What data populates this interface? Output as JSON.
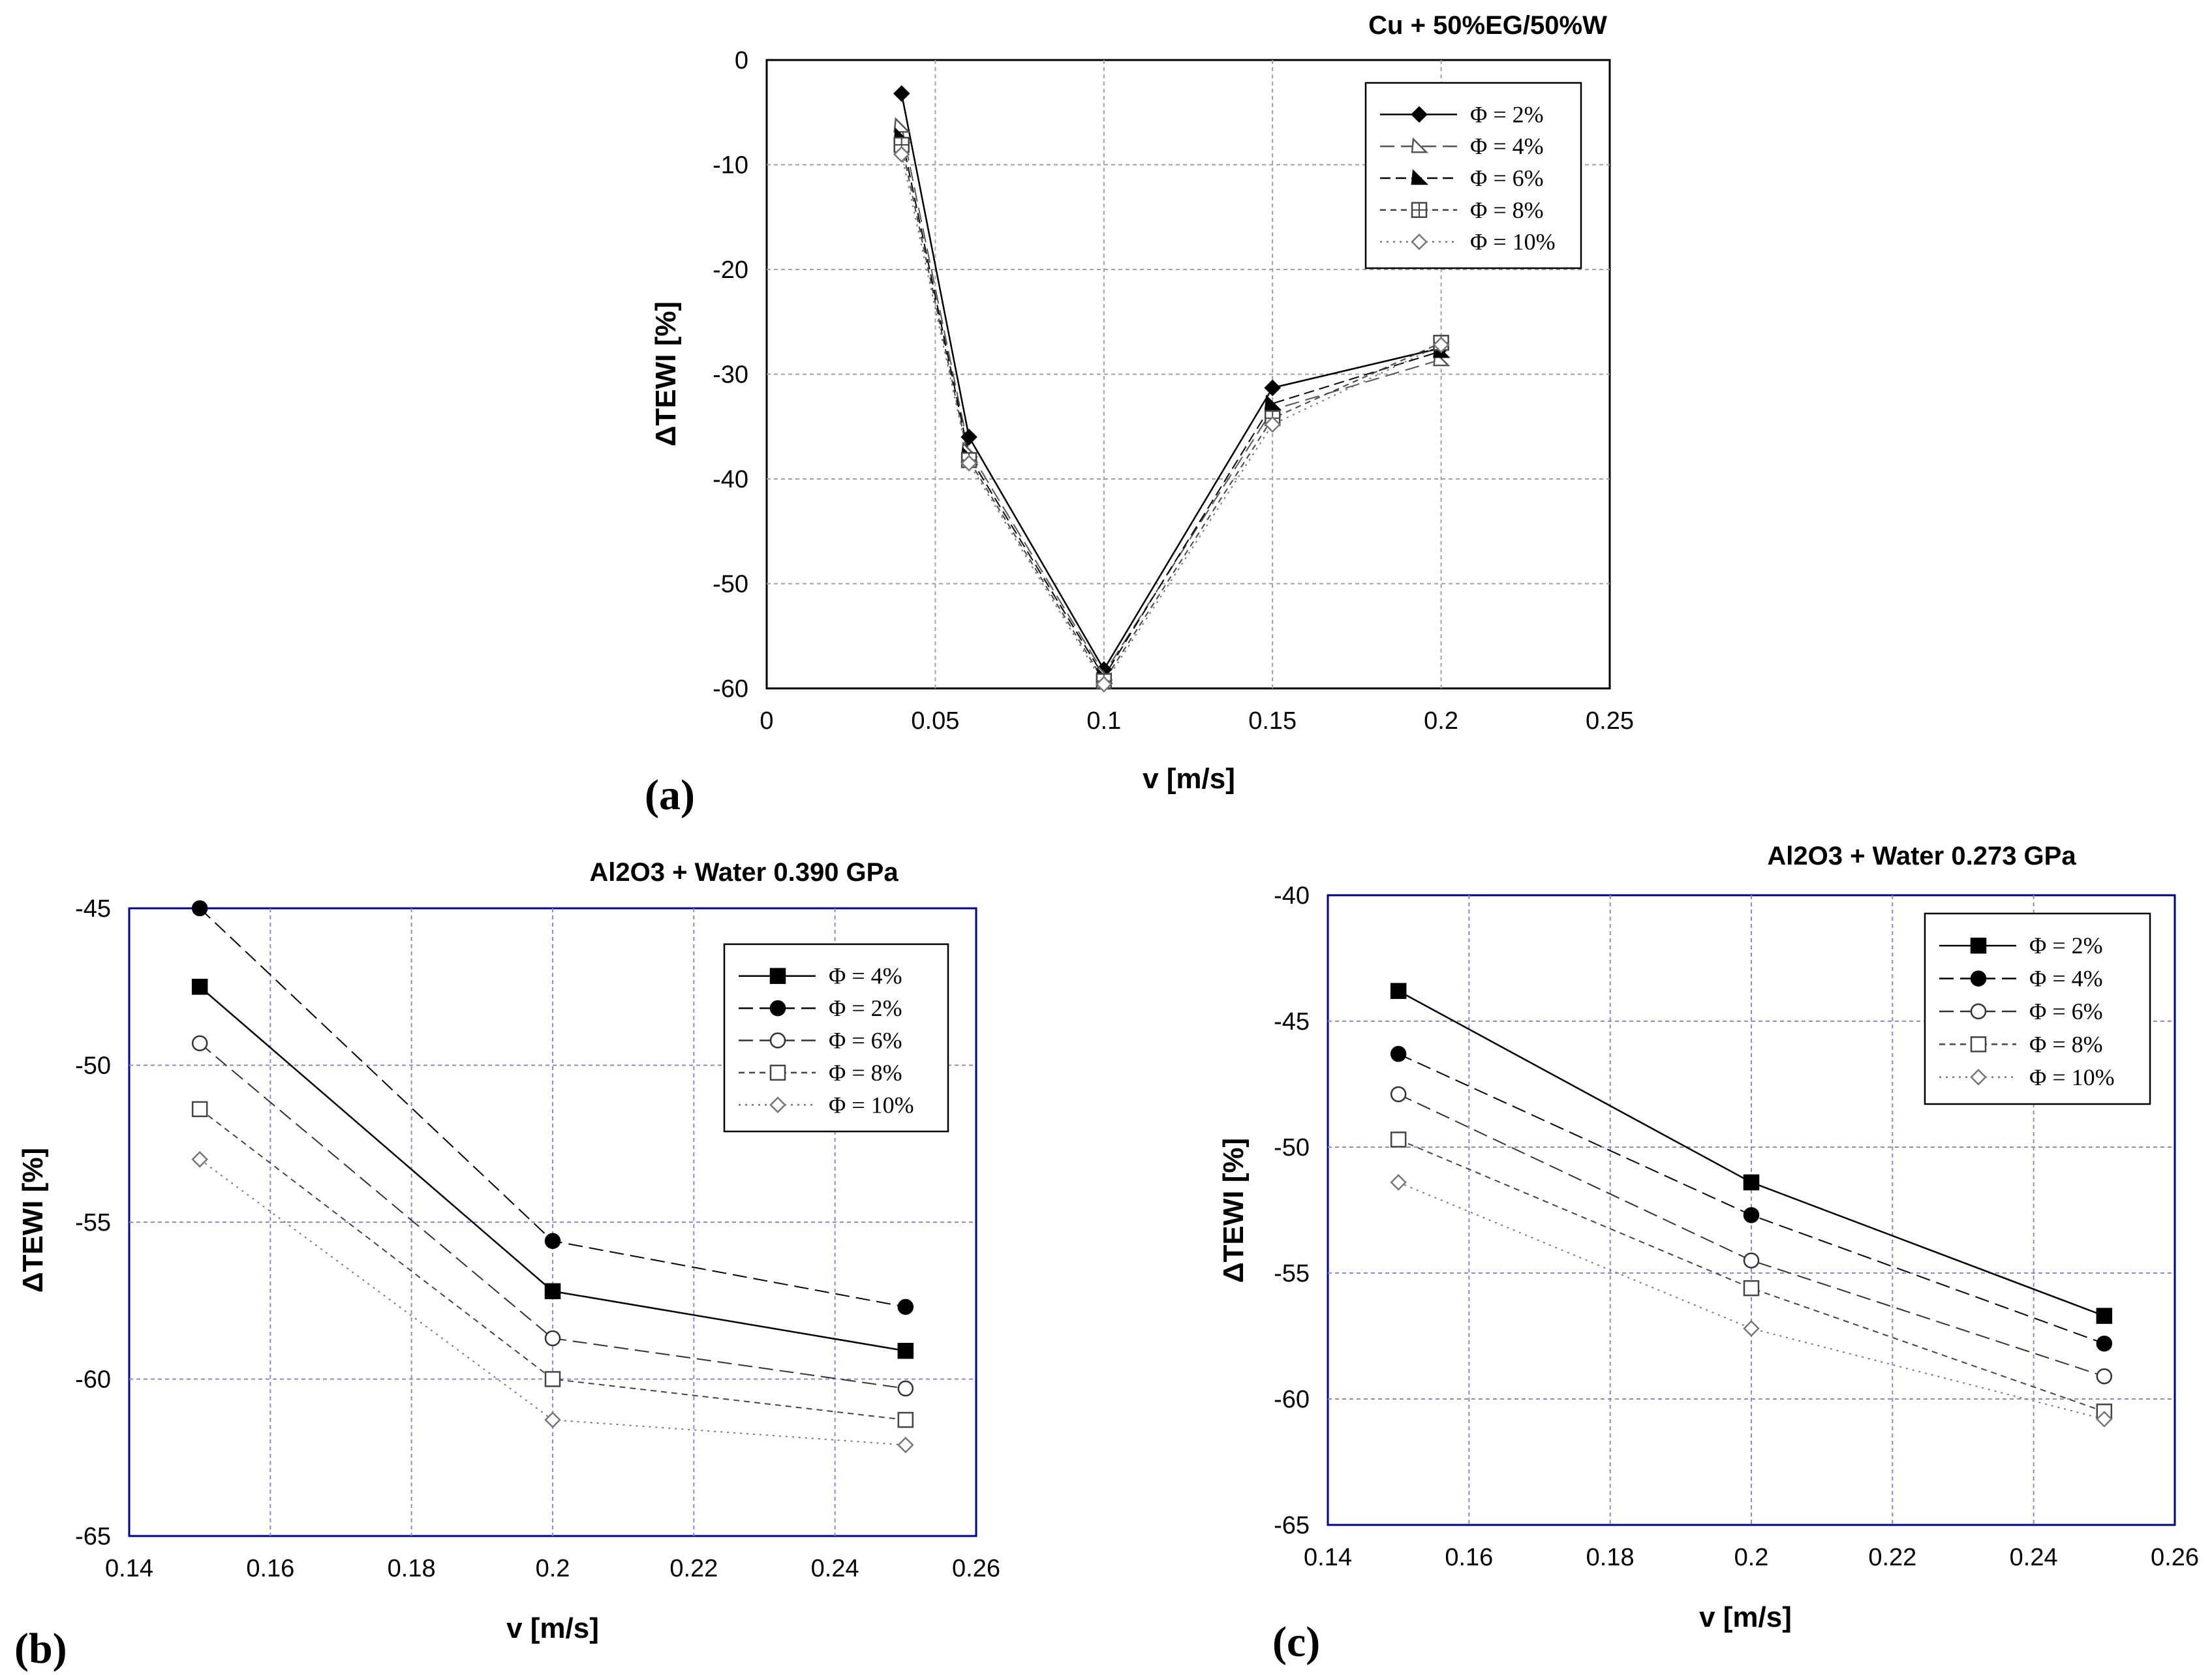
{
  "chart_data": [
    {
      "panel_label": "(a)",
      "type": "line",
      "title": "Cu + 50%EG/50%W",
      "xlabel": "v [m/s]",
      "ylabel": "ΔTEWI [%]",
      "xlim": [
        0,
        0.25
      ],
      "ylim": [
        -60,
        0
      ],
      "xticks": [
        "0",
        "0.05",
        "0.1",
        "0.15",
        "0.2",
        "0.25"
      ],
      "yticks": [
        "0",
        "-10",
        "-20",
        "-30",
        "-40",
        "-50",
        "-60"
      ],
      "grid": true,
      "legend_position": "top-right",
      "x": [
        0.04,
        0.06,
        0.1,
        0.15,
        0.2
      ],
      "series": [
        {
          "name": "Φ = 2%",
          "values": [
            -3.2,
            -36.0,
            -58.2,
            -31.3,
            -27.5
          ],
          "marker": "diamond-filled",
          "dash": "solid",
          "color": "#000000"
        },
        {
          "name": "Φ = 4%",
          "values": [
            -6.3,
            -37.3,
            -58.6,
            -33.4,
            -28.6
          ],
          "marker": "triangle-open",
          "dash": "long-dash",
          "color": "#555555"
        },
        {
          "name": "Φ = 6%",
          "values": [
            -7.3,
            -37.8,
            -58.9,
            -32.8,
            -27.8
          ],
          "marker": "triangle-filled",
          "dash": "dash",
          "color": "#000000"
        },
        {
          "name": "Φ = 8%",
          "values": [
            -8.1,
            -38.2,
            -59.3,
            -34.2,
            -27.0
          ],
          "marker": "square-cross",
          "dash": "short-dash",
          "color": "#444444"
        },
        {
          "name": "Φ = 10%",
          "values": [
            -9.0,
            -38.5,
            -59.6,
            -34.8,
            -27.2
          ],
          "marker": "diamond-open",
          "dash": "dot",
          "color": "#777777"
        }
      ]
    },
    {
      "panel_label": "(b)",
      "type": "line",
      "title": "Al2O3 + Water   0.390 GPa",
      "xlabel": "v [m/s]",
      "ylabel": "ΔTEWI [%]",
      "xlim": [
        0.14,
        0.26
      ],
      "ylim": [
        -65,
        -45
      ],
      "xticks": [
        "0.14",
        "0.16",
        "0.18",
        "0.2",
        "0.22",
        "0.24",
        "0.26"
      ],
      "yticks": [
        "-45",
        "-50",
        "-55",
        "-60",
        "-65"
      ],
      "grid": true,
      "legend_position": "top-right",
      "x": [
        0.15,
        0.2,
        0.25
      ],
      "series": [
        {
          "name": "Φ = 4%",
          "values": [
            -47.5,
            -57.2,
            -59.1
          ],
          "marker": "square-filled",
          "dash": "solid",
          "color": "#000000"
        },
        {
          "name": "Φ = 2%",
          "values": [
            -45.0,
            -55.6,
            -57.7
          ],
          "marker": "circle-filled",
          "dash": "long-dash",
          "color": "#000000"
        },
        {
          "name": "Φ = 6%",
          "values": [
            -49.3,
            -58.7,
            -60.3
          ],
          "marker": "circle-open",
          "dash": "long-dash",
          "color": "#333333"
        },
        {
          "name": "Φ = 8%",
          "values": [
            -51.4,
            -60.0,
            -61.3
          ],
          "marker": "square-open",
          "dash": "short-dash",
          "color": "#444444"
        },
        {
          "name": "Φ = 10%",
          "values": [
            -53.0,
            -61.3,
            -62.1
          ],
          "marker": "diamond-open",
          "dash": "dot",
          "color": "#777777"
        }
      ]
    },
    {
      "panel_label": "(c)",
      "type": "line",
      "title": "Al2O3 + Water 0.273 GPa",
      "xlabel": "v [m/s]",
      "ylabel": "ΔTEWI [%]",
      "xlim": [
        0.14,
        0.26
      ],
      "ylim": [
        -65,
        -40
      ],
      "xticks": [
        "0.14",
        "0.16",
        "0.18",
        "0.2",
        "0.22",
        "0.24",
        "0.26"
      ],
      "yticks": [
        "-40",
        "-45",
        "-50",
        "-55",
        "-60",
        "-65"
      ],
      "grid": true,
      "legend_position": "top-right",
      "x": [
        0.15,
        0.2,
        0.25
      ],
      "series": [
        {
          "name": "Φ = 2%",
          "values": [
            -43.8,
            -51.4,
            -56.7
          ],
          "marker": "square-filled",
          "dash": "solid",
          "color": "#000000"
        },
        {
          "name": "Φ = 4%",
          "values": [
            -46.3,
            -52.7,
            -57.8
          ],
          "marker": "circle-filled",
          "dash": "long-dash",
          "color": "#000000"
        },
        {
          "name": "Φ = 6%",
          "values": [
            -47.9,
            -54.5,
            -59.1
          ],
          "marker": "circle-open",
          "dash": "long-dash",
          "color": "#333333"
        },
        {
          "name": "Φ = 8%",
          "values": [
            -49.7,
            -55.6,
            -60.5
          ],
          "marker": "square-open",
          "dash": "short-dash",
          "color": "#444444"
        },
        {
          "name": "Φ = 10%",
          "values": [
            -51.4,
            -57.2,
            -60.8
          ],
          "marker": "diamond-open",
          "dash": "dot",
          "color": "#777777"
        }
      ]
    }
  ]
}
